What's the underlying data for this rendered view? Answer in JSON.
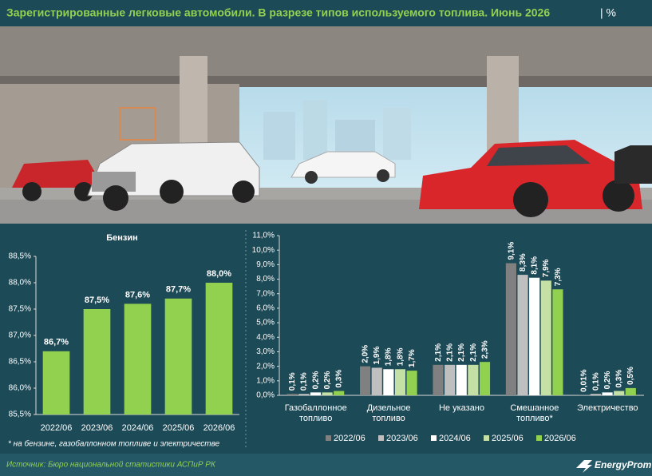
{
  "title": "Зарегистрированные легковые автомобили. В разрезе типов используемого топлива. Июнь 2026",
  "title_suffix": "| %",
  "footnote": "* на бензине, газобаллонном топливе и электричестве",
  "source": "Источник: Бюро национальной статистики АСПиР РК",
  "logo": "EnergyProm",
  "chart_data": [
    {
      "type": "bar",
      "title": "Бензин",
      "categories": [
        "2022/06",
        "2023/06",
        "2024/06",
        "2025/06",
        "2026/06"
      ],
      "values": [
        86.7,
        87.5,
        87.6,
        87.7,
        88.0
      ],
      "value_labels": [
        "86,7%",
        "87,5%",
        "87,6%",
        "87,7%",
        "88,0%"
      ],
      "color": "#92d050",
      "ylim": [
        85.5,
        88.5
      ],
      "yticks": [
        {
          "value": 85.5,
          "label": "85,5%"
        },
        {
          "value": 86.0,
          "label": "86,0%"
        },
        {
          "value": 86.5,
          "label": "86,5%"
        },
        {
          "value": 87.0,
          "label": "87,0%"
        },
        {
          "value": 87.5,
          "label": "87,5%"
        },
        {
          "value": 88.0,
          "label": "88,0%"
        },
        {
          "value": 88.5,
          "label": "88,5%"
        }
      ]
    },
    {
      "type": "grouped_bar",
      "categories": [
        "Газобаллонное\nтопливо",
        "Дизельное\nтопливо",
        "Не указано",
        "Смешанное\nтопливо*",
        "Электричество"
      ],
      "series": [
        {
          "name": "2022/06",
          "color": "#808080",
          "values": [
            0.1,
            2.0,
            2.1,
            9.1,
            0.01
          ],
          "value_labels": [
            "0,1%",
            "2,0%",
            "2,1%",
            "9,1%",
            "0,01%"
          ]
        },
        {
          "name": "2023/06",
          "color": "#bfbfbf",
          "values": [
            0.1,
            1.9,
            2.1,
            8.3,
            0.1
          ],
          "value_labels": [
            "0,1%",
            "1,9%",
            "2,1%",
            "8,3%",
            "0,1%"
          ]
        },
        {
          "name": "2024/06",
          "color": "#ffffff",
          "values": [
            0.2,
            1.8,
            2.1,
            8.1,
            0.2
          ],
          "value_labels": [
            "0,2%",
            "1,8%",
            "2,1%",
            "8,1%",
            "0,2%"
          ]
        },
        {
          "name": "2025/06",
          "color": "#c5e0a5",
          "values": [
            0.2,
            1.8,
            2.1,
            7.9,
            0.3
          ],
          "value_labels": [
            "0,2%",
            "1,8%",
            "2,1%",
            "7,9%",
            "0,3%"
          ]
        },
        {
          "name": "2026/06",
          "color": "#92d050",
          "values": [
            0.3,
            1.7,
            2.3,
            7.3,
            0.5
          ],
          "value_labels": [
            "0,3%",
            "1,7%",
            "2,3%",
            "7,3%",
            "0,5%"
          ]
        }
      ],
      "ylim": [
        0,
        11
      ],
      "yticks": [
        {
          "value": 0,
          "label": "0,0%"
        },
        {
          "value": 1,
          "label": "1,0%"
        },
        {
          "value": 2,
          "label": "2,0%"
        },
        {
          "value": 3,
          "label": "3,0%"
        },
        {
          "value": 4,
          "label": "4,0%"
        },
        {
          "value": 5,
          "label": "5,0%"
        },
        {
          "value": 6,
          "label": "6,0%"
        },
        {
          "value": 7,
          "label": "7,0%"
        },
        {
          "value": 8,
          "label": "8,0%"
        },
        {
          "value": 9,
          "label": "9,0%"
        },
        {
          "value": 10,
          "label": "10,0%"
        },
        {
          "value": 11,
          "label": "11,0%"
        }
      ]
    }
  ]
}
